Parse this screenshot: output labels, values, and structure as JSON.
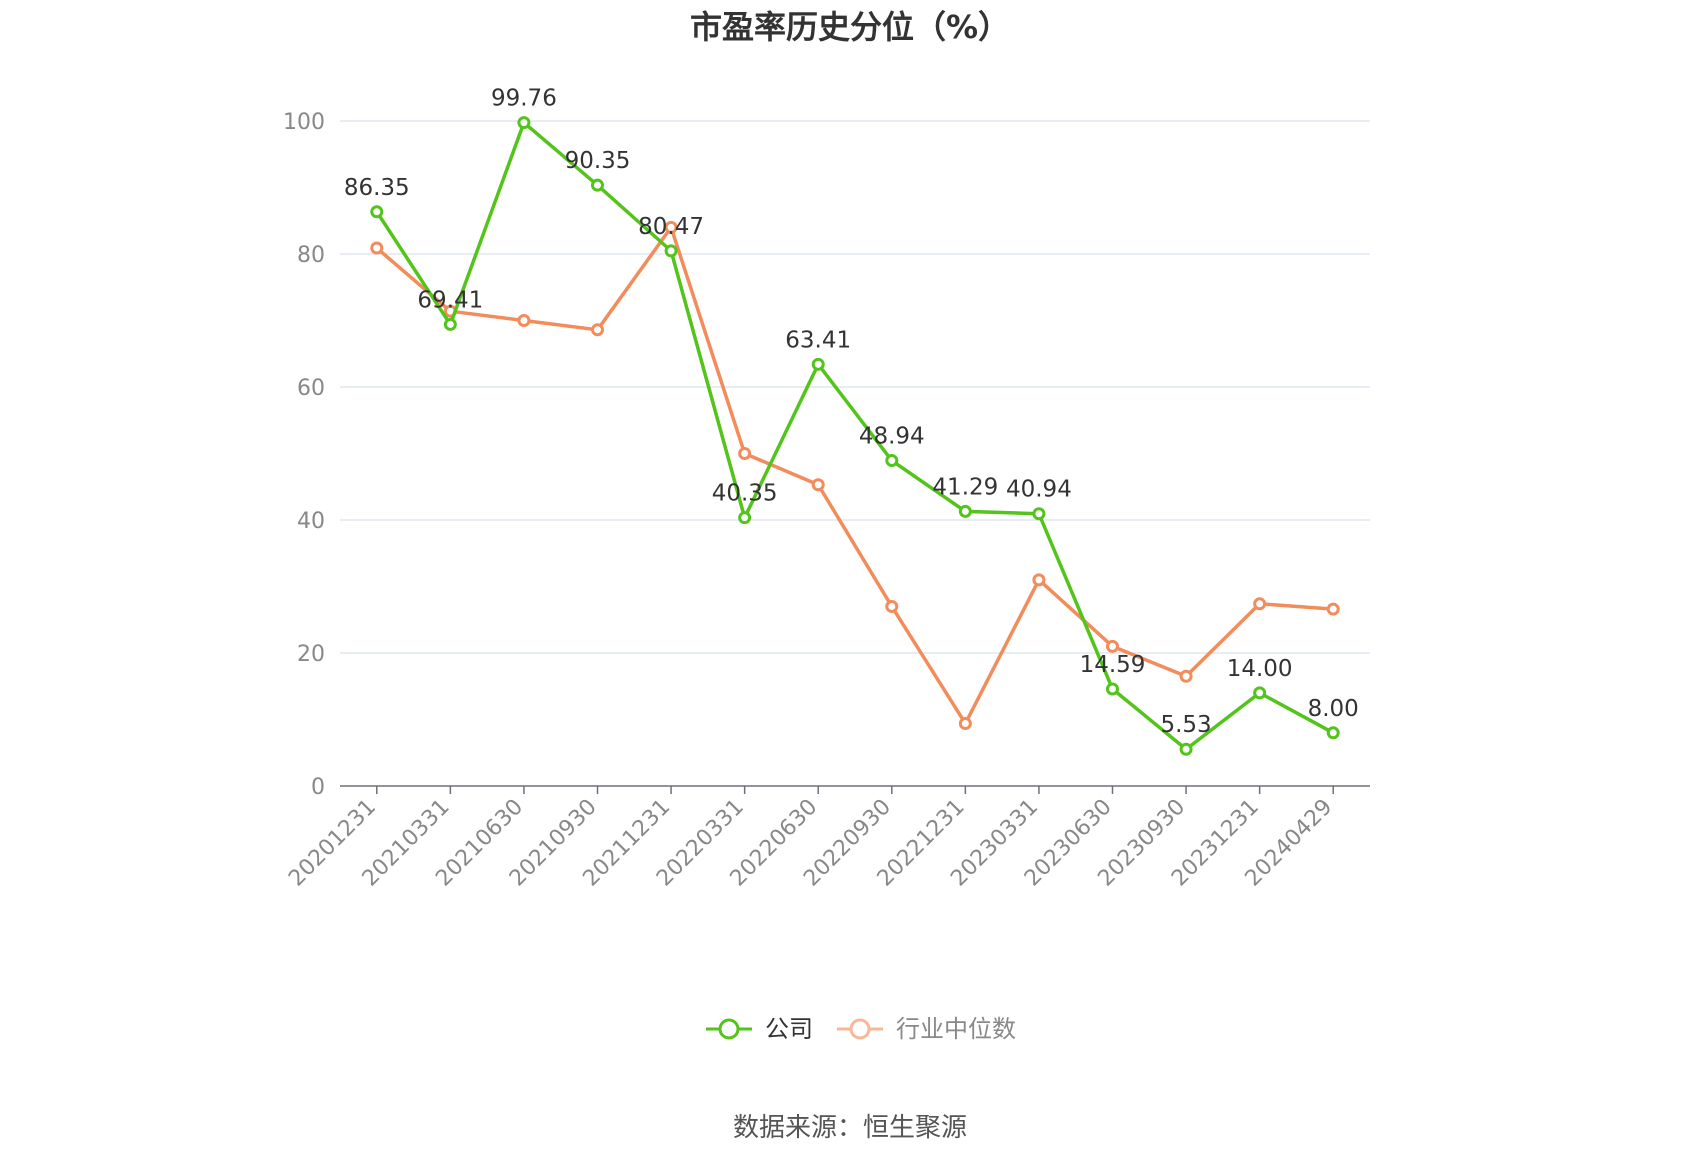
{
  "chart_data": {
    "type": "line",
    "title": "市盈率历史分位（%）",
    "x": [
      "20201231",
      "20210331",
      "20210630",
      "20210930",
      "20211231",
      "20220331",
      "20220630",
      "20220930",
      "20221231",
      "20230331",
      "20230630",
      "20230930",
      "20231231",
      "20240429"
    ],
    "series": [
      {
        "name": "公司",
        "color": "#52c41a",
        "values": [
          86.35,
          69.41,
          99.76,
          90.35,
          80.47,
          40.35,
          63.41,
          48.94,
          41.29,
          40.94,
          14.59,
          5.53,
          14.0,
          8.0
        ],
        "labels": [
          "86.35",
          "69.41",
          "99.76",
          "90.35",
          "80.47",
          "40.35",
          "63.41",
          "48.94",
          "41.29",
          "40.94",
          "14.59",
          "5.53",
          "14.00",
          "8.00"
        ]
      },
      {
        "name": "行业中位数",
        "color": "#f28c5a",
        "legend_color": "#f9b79a",
        "values": [
          80.9,
          71.4,
          70.0,
          68.6,
          84.0,
          50.0,
          45.3,
          27.0,
          9.4,
          31.0,
          21.0,
          16.5,
          27.4,
          26.6
        ]
      }
    ],
    "y_ticks": [
      "0",
      "20",
      "40",
      "60",
      "80",
      "100"
    ],
    "ylim": [
      0,
      100
    ],
    "grid": true,
    "legend_position": "bottom-center",
    "source": "数据来源：恒生聚源"
  }
}
